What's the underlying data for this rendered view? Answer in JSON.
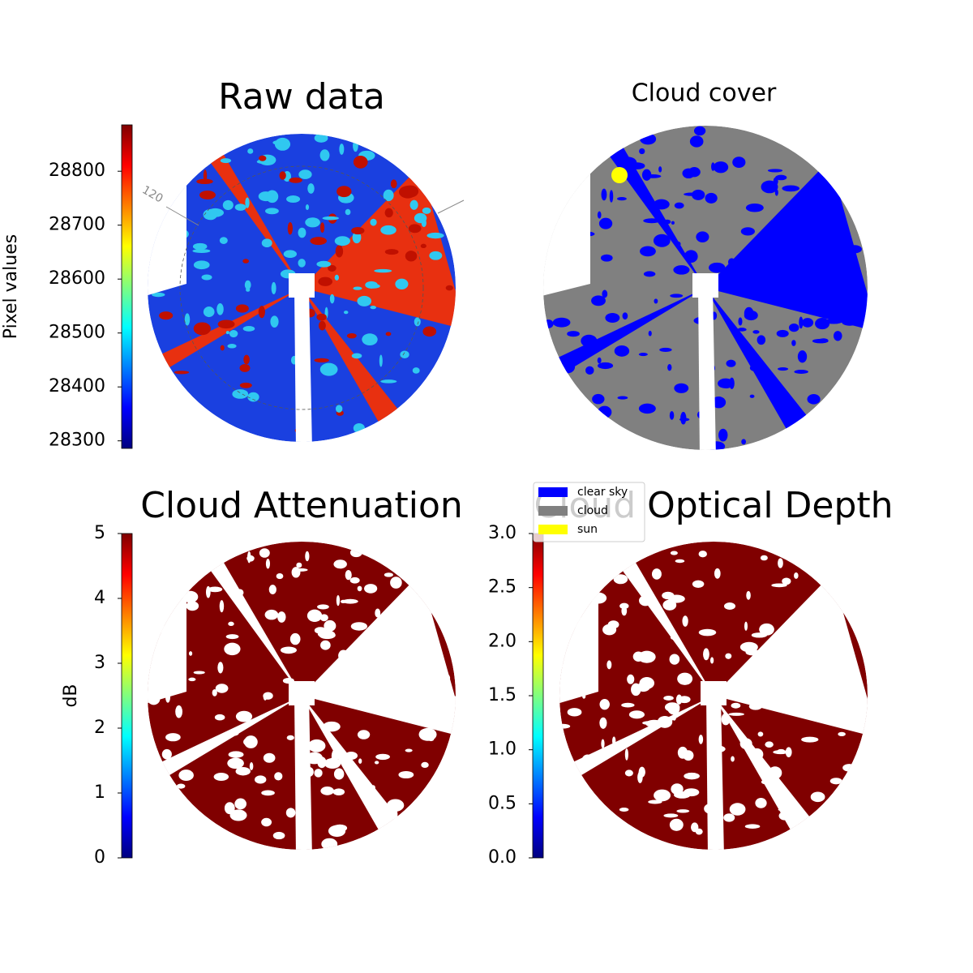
{
  "chart_data": [
    {
      "type": "image",
      "title": "Raw data",
      "ylabel": "Pixel values",
      "colormap": "jet",
      "annotation": "120",
      "ylim": [
        28286,
        28886
      ],
      "yticks": [
        28300,
        28400,
        28500,
        28600,
        28700,
        28800
      ]
    },
    {
      "type": "image",
      "title": "Cloud cover",
      "legend": [
        {
          "name": "clear sky",
          "color": "#0000ff"
        },
        {
          "name": "cloud",
          "color": "#808080"
        },
        {
          "name": "sun",
          "color": "#ffff00"
        }
      ],
      "legend_position": "lower left"
    },
    {
      "type": "image",
      "title": "Cloud Attenuation",
      "ylabel": "dB",
      "colormap": "jet",
      "ylim": [
        0,
        5
      ],
      "yticks": [
        0,
        1,
        2,
        3,
        4,
        5
      ]
    },
    {
      "type": "image",
      "title": "Cloud Optical Depth",
      "colormap": "jet",
      "ylim": [
        0,
        3
      ],
      "yticks": [
        {
          "value": 0,
          "label": "0.0"
        },
        {
          "value": 0.5,
          "label": "0.5"
        },
        {
          "value": 1,
          "label": "1.0"
        },
        {
          "value": 1.5,
          "label": "1.5"
        },
        {
          "value": 2,
          "label": "2.0"
        },
        {
          "value": 2.5,
          "label": "2.5"
        },
        {
          "value": 3,
          "label": "3.0"
        }
      ]
    }
  ]
}
